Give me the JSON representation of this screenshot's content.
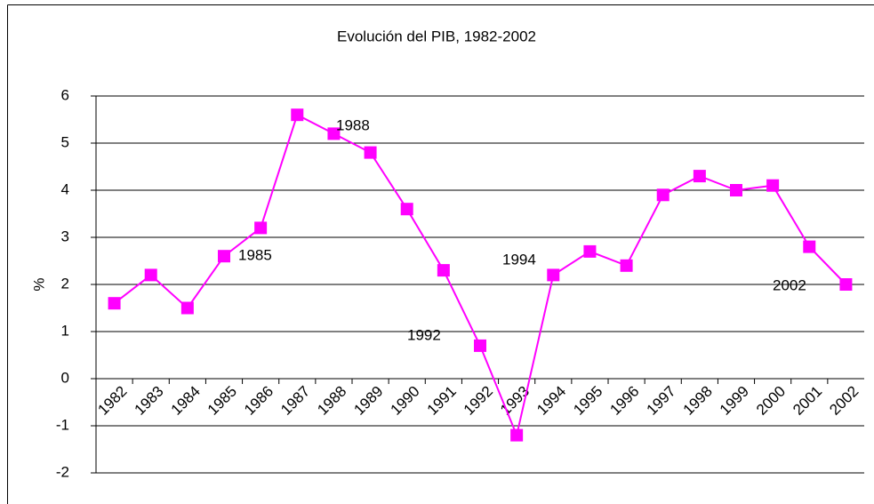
{
  "chart_data": {
    "type": "line",
    "title": "Evolución del PIB, 1982-2002",
    "ylabel": "%",
    "categories": [
      "1982",
      "1983",
      "1984",
      "1985",
      "1986",
      "1987",
      "1988",
      "1989",
      "1990",
      "1991",
      "1992",
      "1993",
      "1994",
      "1995",
      "1996",
      "1997",
      "1998",
      "1999",
      "2000",
      "2001",
      "2002"
    ],
    "values": [
      1.6,
      2.2,
      1.5,
      2.6,
      3.2,
      5.6,
      5.2,
      4.8,
      3.6,
      2.3,
      0.7,
      -1.2,
      2.2,
      2.7,
      2.4,
      3.9,
      4.3,
      4.0,
      4.1,
      2.8,
      2.0
    ],
    "color": "#ff00ff",
    "ylim": [
      -2,
      6
    ],
    "yticks": [
      -2,
      -1,
      0,
      1,
      2,
      3,
      4,
      5,
      6
    ],
    "grid": true,
    "annotations": [
      "1988",
      "1985",
      "1994",
      "1992",
      "2002"
    ]
  }
}
